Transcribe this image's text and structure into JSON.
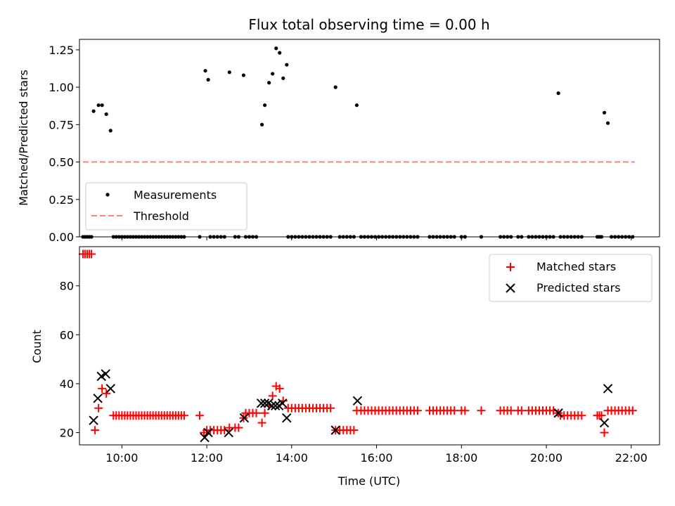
{
  "chart_data": [
    {
      "type": "scatter",
      "title": "Flux total observing time = 0.00 h",
      "xlabel": "",
      "ylabel": "Matched/Predicted stars",
      "xlim": [
        "09:00",
        "22:40"
      ],
      "ylim": [
        0,
        1.32
      ],
      "yticks": [
        "0.00",
        "0.25",
        "0.50",
        "0.75",
        "1.00",
        "1.25"
      ],
      "grid": false,
      "legend_position": "lower-left",
      "series": [
        {
          "name": "Measurements",
          "style": "dot",
          "color": "#000000",
          "points": [
            [
              "09:20",
              0.84
            ],
            [
              "09:27",
              0.88
            ],
            [
              "09:32",
              0.88
            ],
            [
              "09:38",
              0.82
            ],
            [
              "09:44",
              0.71
            ],
            [
              "11:58",
              1.11
            ],
            [
              "12:02",
              1.05
            ],
            [
              "12:32",
              1.1
            ],
            [
              "12:52",
              1.08
            ],
            [
              "13:18",
              0.75
            ],
            [
              "13:22",
              0.88
            ],
            [
              "13:28",
              1.03
            ],
            [
              "13:33",
              1.09
            ],
            [
              "13:38",
              1.26
            ],
            [
              "13:43",
              1.23
            ],
            [
              "13:48",
              1.06
            ],
            [
              "13:53",
              1.15
            ],
            [
              "15:02",
              1.0
            ],
            [
              "15:32",
              0.88
            ],
            [
              "20:17",
              0.96
            ],
            [
              "21:22",
              0.83
            ],
            [
              "21:27",
              0.76
            ]
          ],
          "zero_times": [
            "09:05",
            "09:08",
            "09:11",
            "09:14",
            "09:17",
            "09:48",
            "09:52",
            "09:56",
            "10:00",
            "10:04",
            "10:08",
            "10:12",
            "10:16",
            "10:20",
            "10:24",
            "10:28",
            "10:32",
            "10:36",
            "10:40",
            "10:44",
            "10:48",
            "10:52",
            "10:56",
            "11:00",
            "11:04",
            "11:08",
            "11:12",
            "11:16",
            "11:20",
            "11:24",
            "11:28",
            "11:50",
            "12:05",
            "12:10",
            "12:15",
            "12:20",
            "12:25",
            "12:40",
            "12:45",
            "12:55",
            "13:00",
            "13:05",
            "13:10",
            "13:55",
            "14:00",
            "14:05",
            "14:10",
            "14:15",
            "14:20",
            "14:25",
            "14:30",
            "14:35",
            "14:40",
            "14:45",
            "14:50",
            "14:55",
            "15:08",
            "15:13",
            "15:18",
            "15:23",
            "15:28",
            "15:38",
            "15:43",
            "15:48",
            "15:53",
            "15:58",
            "16:03",
            "16:08",
            "16:13",
            "16:18",
            "16:23",
            "16:28",
            "16:33",
            "16:38",
            "16:43",
            "16:48",
            "16:53",
            "16:58",
            "17:15",
            "17:20",
            "17:25",
            "17:30",
            "17:35",
            "17:40",
            "17:45",
            "17:50",
            "18:00",
            "18:05",
            "18:28",
            "18:55",
            "19:00",
            "19:05",
            "19:10",
            "19:20",
            "19:25",
            "19:35",
            "19:40",
            "19:45",
            "19:50",
            "19:55",
            "20:00",
            "20:05",
            "20:10",
            "20:20",
            "20:25",
            "20:30",
            "20:35",
            "20:40",
            "20:45",
            "20:50",
            "21:12",
            "21:15",
            "21:18",
            "21:32",
            "21:37",
            "21:42",
            "21:47",
            "21:52",
            "21:57",
            "22:02"
          ]
        },
        {
          "name": "Threshold",
          "style": "dashed-line",
          "color": "#ff7f7f",
          "x": [
            "09:05",
            "22:05"
          ],
          "y": [
            0.5,
            0.5
          ]
        }
      ]
    },
    {
      "type": "scatter",
      "title": "",
      "xlabel": "Time (UTC)",
      "ylabel": "Count",
      "xlim": [
        "09:00",
        "22:40"
      ],
      "ylim": [
        15,
        96
      ],
      "xticks": [
        "10:00",
        "12:00",
        "14:00",
        "16:00",
        "18:00",
        "20:00",
        "22:00"
      ],
      "yticks": [
        "20",
        "40",
        "60",
        "80"
      ],
      "grid": false,
      "legend_position": "upper-right",
      "series": [
        {
          "name": "Matched stars",
          "marker": "+",
          "color": "#ff0000",
          "points": [
            [
              "09:05",
              93
            ],
            [
              "09:08",
              93
            ],
            [
              "09:11",
              93
            ],
            [
              "09:14",
              93
            ],
            [
              "09:17",
              93
            ],
            [
              "09:22",
              21
            ],
            [
              "09:27",
              30
            ],
            [
              "09:32",
              38
            ],
            [
              "09:38",
              36
            ],
            [
              "09:48",
              27
            ],
            [
              "09:52",
              27
            ],
            [
              "09:56",
              27
            ],
            [
              "10:00",
              27
            ],
            [
              "10:04",
              27
            ],
            [
              "10:08",
              27
            ],
            [
              "10:12",
              27
            ],
            [
              "10:16",
              27
            ],
            [
              "10:20",
              27
            ],
            [
              "10:24",
              27
            ],
            [
              "10:28",
              27
            ],
            [
              "10:32",
              27
            ],
            [
              "10:36",
              27
            ],
            [
              "10:40",
              27
            ],
            [
              "10:44",
              27
            ],
            [
              "10:48",
              27
            ],
            [
              "10:52",
              27
            ],
            [
              "10:56",
              27
            ],
            [
              "11:00",
              27
            ],
            [
              "11:04",
              27
            ],
            [
              "11:08",
              27
            ],
            [
              "11:12",
              27
            ],
            [
              "11:16",
              27
            ],
            [
              "11:20",
              27
            ],
            [
              "11:24",
              27
            ],
            [
              "11:28",
              27
            ],
            [
              "11:50",
              27
            ],
            [
              "11:56",
              20
            ],
            [
              "12:00",
              21
            ],
            [
              "12:05",
              21
            ],
            [
              "12:10",
              21
            ],
            [
              "12:15",
              21
            ],
            [
              "12:20",
              21
            ],
            [
              "12:25",
              21
            ],
            [
              "12:32",
              22
            ],
            [
              "12:40",
              22
            ],
            [
              "12:45",
              22
            ],
            [
              "12:52",
              26
            ],
            [
              "12:55",
              28
            ],
            [
              "13:00",
              28
            ],
            [
              "13:05",
              28
            ],
            [
              "13:10",
              28
            ],
            [
              "13:18",
              24
            ],
            [
              "13:22",
              28
            ],
            [
              "13:28",
              31
            ],
            [
              "13:33",
              35
            ],
            [
              "13:38",
              39
            ],
            [
              "13:43",
              38
            ],
            [
              "13:48",
              33
            ],
            [
              "13:55",
              30
            ],
            [
              "14:00",
              30
            ],
            [
              "14:05",
              30
            ],
            [
              "14:10",
              30
            ],
            [
              "14:15",
              30
            ],
            [
              "14:20",
              30
            ],
            [
              "14:25",
              30
            ],
            [
              "14:30",
              30
            ],
            [
              "14:35",
              30
            ],
            [
              "14:40",
              30
            ],
            [
              "14:45",
              30
            ],
            [
              "14:50",
              30
            ],
            [
              "14:55",
              30
            ],
            [
              "15:02",
              21
            ],
            [
              "15:08",
              21
            ],
            [
              "15:13",
              21
            ],
            [
              "15:18",
              21
            ],
            [
              "15:23",
              21
            ],
            [
              "15:28",
              21
            ],
            [
              "15:32",
              29
            ],
            [
              "15:38",
              29
            ],
            [
              "15:43",
              29
            ],
            [
              "15:48",
              29
            ],
            [
              "15:53",
              29
            ],
            [
              "15:58",
              29
            ],
            [
              "16:03",
              29
            ],
            [
              "16:08",
              29
            ],
            [
              "16:13",
              29
            ],
            [
              "16:18",
              29
            ],
            [
              "16:23",
              29
            ],
            [
              "16:28",
              29
            ],
            [
              "16:33",
              29
            ],
            [
              "16:38",
              29
            ],
            [
              "16:43",
              29
            ],
            [
              "16:48",
              29
            ],
            [
              "16:53",
              29
            ],
            [
              "16:58",
              29
            ],
            [
              "17:15",
              29
            ],
            [
              "17:20",
              29
            ],
            [
              "17:25",
              29
            ],
            [
              "17:30",
              29
            ],
            [
              "17:35",
              29
            ],
            [
              "17:40",
              29
            ],
            [
              "17:45",
              29
            ],
            [
              "17:50",
              29
            ],
            [
              "18:00",
              29
            ],
            [
              "18:05",
              29
            ],
            [
              "18:28",
              29
            ],
            [
              "18:55",
              29
            ],
            [
              "19:00",
              29
            ],
            [
              "19:05",
              29
            ],
            [
              "19:10",
              29
            ],
            [
              "19:20",
              29
            ],
            [
              "19:25",
              29
            ],
            [
              "19:35",
              29
            ],
            [
              "19:40",
              29
            ],
            [
              "19:45",
              29
            ],
            [
              "19:50",
              29
            ],
            [
              "19:55",
              29
            ],
            [
              "20:00",
              29
            ],
            [
              "20:05",
              29
            ],
            [
              "20:10",
              29
            ],
            [
              "20:17",
              28
            ],
            [
              "20:20",
              27
            ],
            [
              "20:25",
              27
            ],
            [
              "20:30",
              27
            ],
            [
              "20:35",
              27
            ],
            [
              "20:40",
              27
            ],
            [
              "20:45",
              27
            ],
            [
              "20:50",
              27
            ],
            [
              "21:12",
              27
            ],
            [
              "21:15",
              27
            ],
            [
              "21:18",
              27
            ],
            [
              "21:22",
              20
            ],
            [
              "21:27",
              29
            ],
            [
              "21:32",
              29
            ],
            [
              "21:37",
              29
            ],
            [
              "21:42",
              29
            ],
            [
              "21:47",
              29
            ],
            [
              "21:52",
              29
            ],
            [
              "21:57",
              29
            ],
            [
              "22:02",
              29
            ]
          ]
        },
        {
          "name": "Predicted stars",
          "marker": "x",
          "color": "#000000",
          "points": [
            [
              "09:20",
              25
            ],
            [
              "09:26",
              34
            ],
            [
              "09:31",
              43
            ],
            [
              "09:37",
              44
            ],
            [
              "09:44",
              38
            ],
            [
              "11:57",
              18
            ],
            [
              "12:02",
              20
            ],
            [
              "12:31",
              20
            ],
            [
              "12:53",
              26
            ],
            [
              "13:17",
              32
            ],
            [
              "13:22",
              32
            ],
            [
              "13:27",
              32
            ],
            [
              "13:32",
              31
            ],
            [
              "13:37",
              31
            ],
            [
              "13:42",
              31
            ],
            [
              "13:47",
              32
            ],
            [
              "13:53",
              26
            ],
            [
              "15:02",
              21
            ],
            [
              "15:33",
              33
            ],
            [
              "20:17",
              28
            ],
            [
              "21:22",
              24
            ],
            [
              "21:27",
              38
            ]
          ]
        }
      ]
    }
  ]
}
